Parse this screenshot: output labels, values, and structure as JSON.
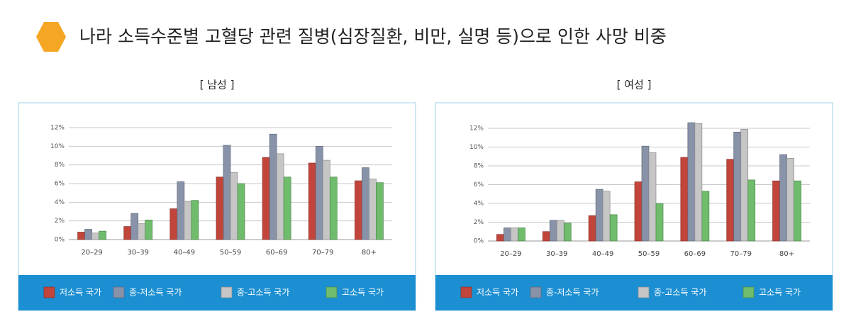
{
  "title": "나라 소득수준별 고혈당 관련 질병(심장질환, 비만, 실명 등)으로 인한 사망 비중",
  "chart_data": [
    {
      "type": "bar",
      "title": "[ 남성 ]",
      "categories": [
        "20–29",
        "30–39",
        "40–49",
        "50–59",
        "60–69",
        "70–79",
        "80+"
      ],
      "series": [
        {
          "name": "저소득 국가",
          "color": "#c2453b",
          "values": [
            0.8,
            1.4,
            3.3,
            6.7,
            8.8,
            8.2,
            6.3
          ]
        },
        {
          "name": "중-저소득 국가",
          "color": "#8893a9",
          "values": [
            1.1,
            2.8,
            6.2,
            10.1,
            11.3,
            10.0,
            7.7
          ]
        },
        {
          "name": "중-고소득 국가",
          "color": "#c6c6c6",
          "values": [
            0.7,
            1.7,
            4.1,
            7.2,
            9.2,
            8.5,
            6.5
          ]
        },
        {
          "name": "고소득 국가",
          "color": "#6fbd6c",
          "values": [
            0.9,
            2.1,
            4.2,
            6.0,
            6.7,
            6.7,
            6.1
          ]
        }
      ],
      "ylim": [
        0,
        12
      ],
      "yticks": [
        {
          "value": 0,
          "label": "0%"
        },
        {
          "value": 2,
          "label": "2%"
        },
        {
          "value": 4,
          "label": "4%"
        },
        {
          "value": 6,
          "label": "6%"
        },
        {
          "value": 8,
          "label": "8%"
        },
        {
          "value": 10,
          "label": "10%"
        },
        {
          "value": 12,
          "label": "12%"
        }
      ],
      "grid": true
    },
    {
      "type": "bar",
      "title": "[ 여성 ]",
      "categories": [
        "20–29",
        "30–39",
        "40–49",
        "50–59",
        "60–69",
        "70–79",
        "80+"
      ],
      "series": [
        {
          "name": "저소득 국가",
          "color": "#c2453b",
          "values": [
            0.7,
            1.0,
            2.7,
            6.3,
            8.9,
            8.7,
            6.4
          ]
        },
        {
          "name": "중-저소득 국가",
          "color": "#8893a9",
          "values": [
            1.4,
            2.2,
            5.5,
            10.1,
            12.6,
            11.6,
            9.2
          ]
        },
        {
          "name": "중-고소득 국가",
          "color": "#c6c6c6",
          "values": [
            1.4,
            2.2,
            5.3,
            9.4,
            12.5,
            11.9,
            8.8
          ]
        },
        {
          "name": "고소득 국가",
          "color": "#6fbd6c",
          "values": [
            1.4,
            1.9,
            2.8,
            4.0,
            5.3,
            6.5,
            6.4
          ]
        }
      ],
      "ylim": [
        0,
        12
      ],
      "yticks": [
        {
          "value": 0,
          "label": "0%"
        },
        {
          "value": 2,
          "label": "2%"
        },
        {
          "value": 4,
          "label": "4%"
        },
        {
          "value": 6,
          "label": "6%"
        },
        {
          "value": 8,
          "label": "8%"
        },
        {
          "value": 10,
          "label": "10%"
        },
        {
          "value": 12,
          "label": "12%"
        }
      ],
      "grid": true
    }
  ]
}
